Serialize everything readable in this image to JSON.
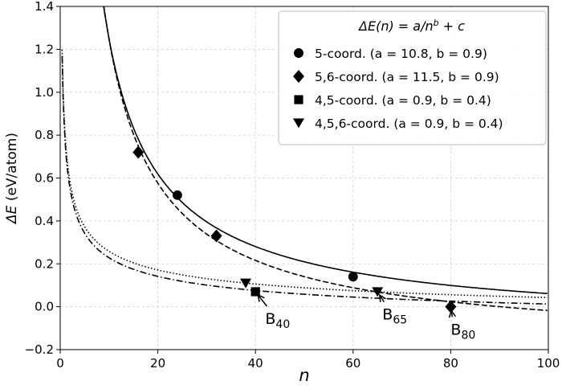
{
  "chart_data": {
    "type": "scatter",
    "title": "",
    "xlabel": "n",
    "ylabel_prefix": "ΔE",
    "ylabel_suffix": " (eV/atom)",
    "xlim": [
      0,
      100
    ],
    "ylim": [
      -0.2,
      1.4
    ],
    "xticks": [
      0,
      20,
      40,
      60,
      80,
      100
    ],
    "yticks": [
      -0.2,
      0.0,
      0.2,
      0.4,
      0.6,
      0.8,
      1.0,
      1.2,
      1.4
    ],
    "xtick_labels": [
      "0",
      "20",
      "40",
      "60",
      "80",
      "100"
    ],
    "ytick_labels": [
      "−0.2",
      "0.0",
      "0.2",
      "0.4",
      "0.6",
      "0.8",
      "1.0",
      "1.2",
      "1.4"
    ],
    "grid": true,
    "legend_placement": "top-right",
    "legend_title": "ΔE(n) = a/n^b + c",
    "series": [
      {
        "name": "5-coord. (a = 10.8, b = 0.9)",
        "marker": "circle",
        "line": "solid",
        "a": 10.8,
        "b": 0.9,
        "c": -0.11,
        "points": [
          [
            24,
            0.52
          ],
          [
            60,
            0.14
          ]
        ]
      },
      {
        "name": "5,6-coord. (a = 11.5, b = 0.9)",
        "marker": "diamond",
        "line": "dashed",
        "a": 11.5,
        "b": 0.9,
        "c": -0.2,
        "points": [
          [
            16,
            0.72
          ],
          [
            32,
            0.33
          ],
          [
            80,
            0.0
          ]
        ]
      },
      {
        "name": "4,5-coord. (a = 0.9, b = 0.4)",
        "marker": "square",
        "line": "dashdot",
        "a": 0.9,
        "b": 0.4,
        "c": -0.13,
        "points": [
          [
            40,
            0.07
          ]
        ]
      },
      {
        "name": "4,5,6-coord. (a = 0.9, b = 0.4)",
        "marker": "triangle-down",
        "line": "dotted",
        "a": 0.9,
        "b": 0.4,
        "c": -0.1,
        "points": [
          [
            38,
            0.11
          ],
          [
            65,
            0.07
          ]
        ]
      }
    ],
    "annotations": [
      {
        "base": "B",
        "sub": "40",
        "point": [
          40,
          0.07
        ],
        "text_at": [
          42,
          -0.08
        ]
      },
      {
        "base": "B",
        "sub": "65",
        "point": [
          65,
          0.07
        ],
        "text_at": [
          66,
          -0.06
        ]
      },
      {
        "base": "B",
        "sub": "80",
        "point": [
          80,
          0.0
        ],
        "text_at": [
          80,
          -0.13
        ]
      }
    ]
  }
}
